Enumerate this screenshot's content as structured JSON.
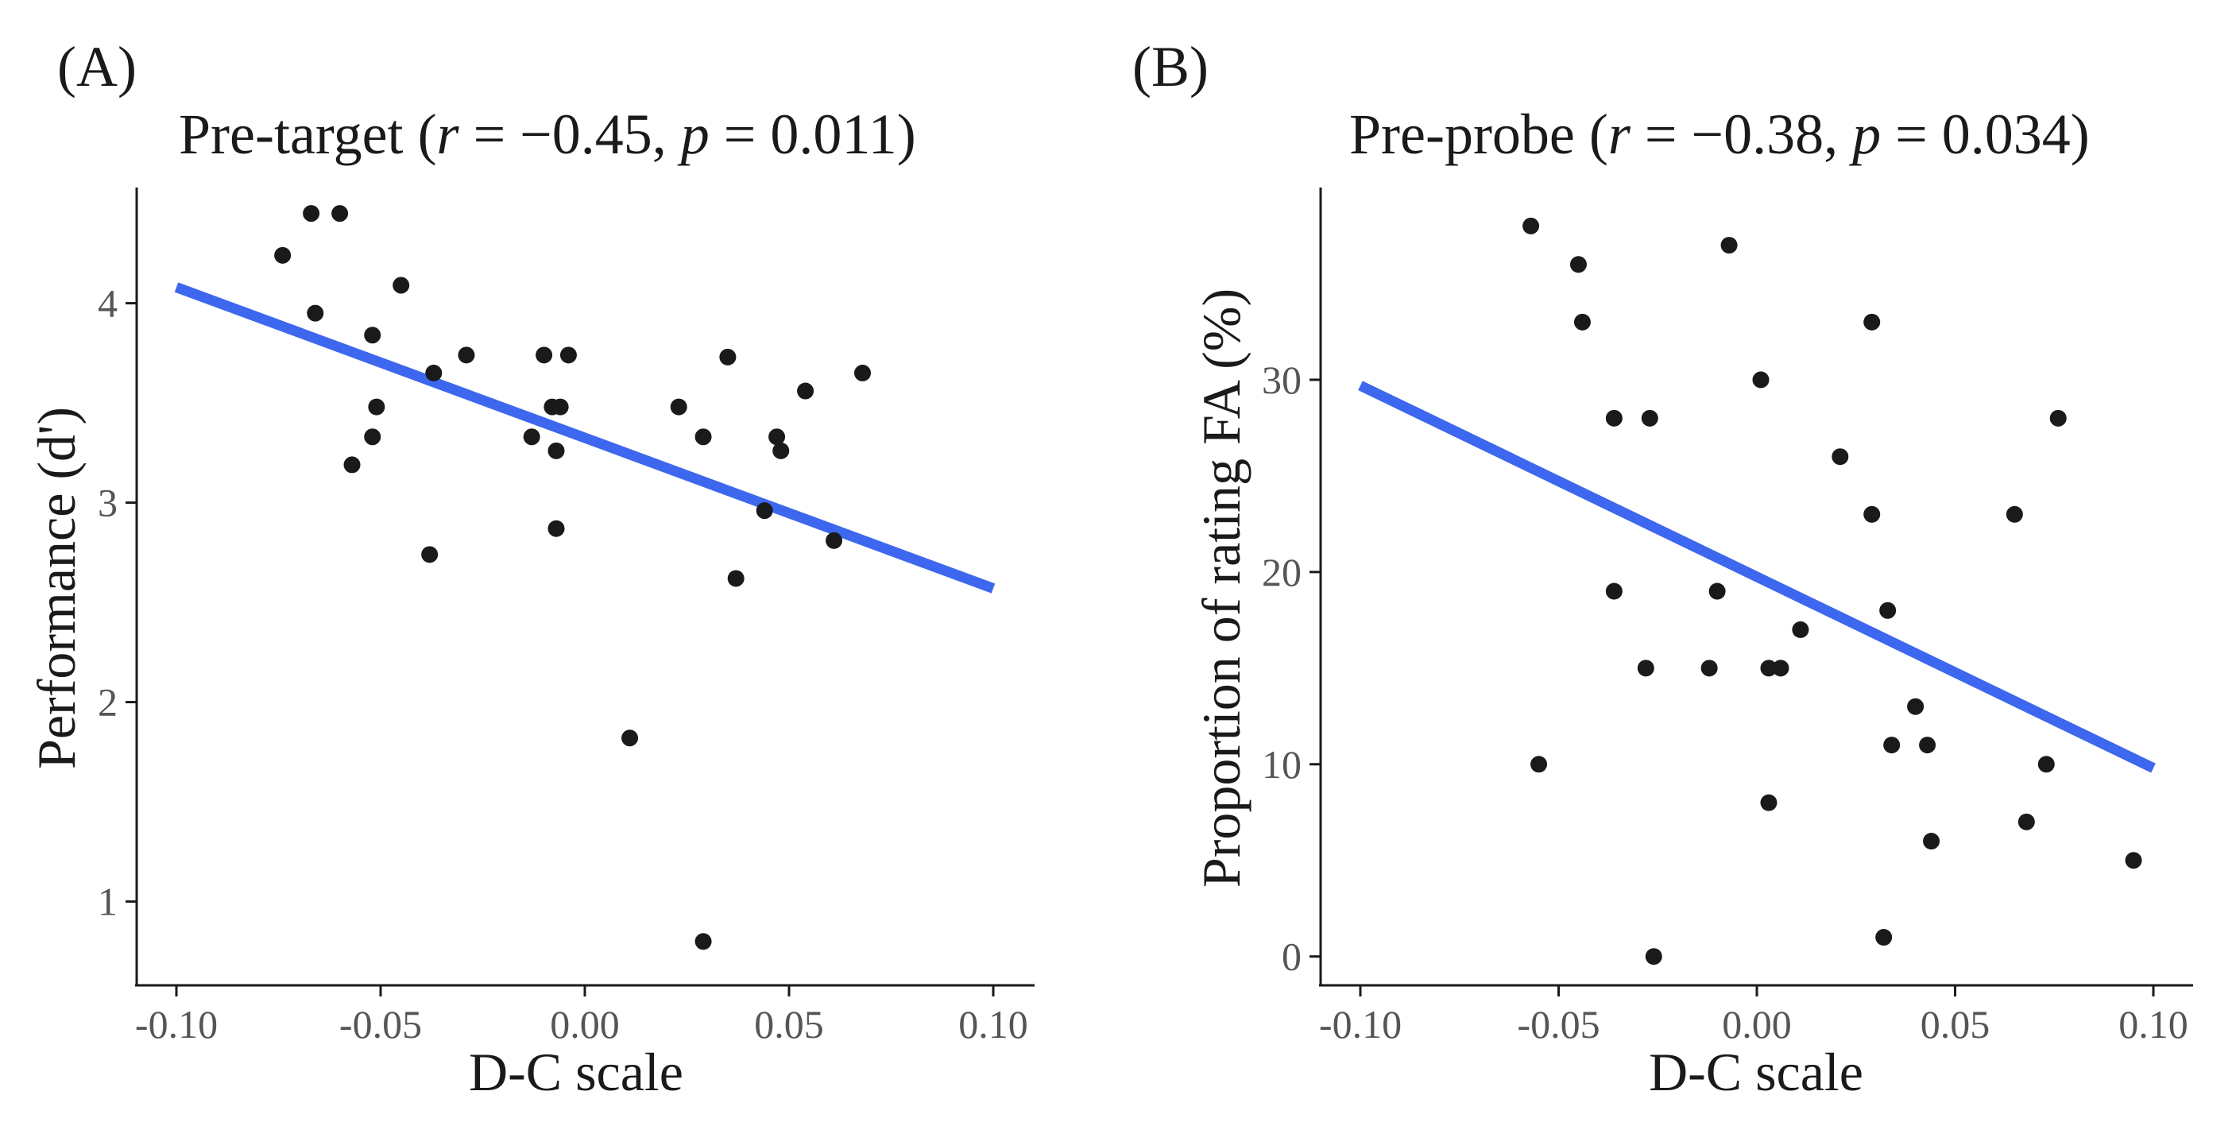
{
  "chart_data": [
    {
      "type": "scatter",
      "panel_label": "(A)",
      "title": {
        "main": "Pre-target",
        "open": " (",
        "r_sym": "r",
        "r_eq": " = −0.45, ",
        "p_sym": "p",
        "p_eq": " = 0.011)"
      },
      "xlabel": "D-C scale",
      "ylabel": "Performance (d')",
      "xlim": [
        -0.1,
        0.1
      ],
      "ylim": [
        0.58,
        4.58
      ],
      "xticks": [
        -0.1,
        -0.05,
        0.0,
        0.05,
        0.1
      ],
      "xtick_labels": [
        "-0.10",
        "-0.05",
        "0.00",
        "0.05",
        "0.10"
      ],
      "yticks": [
        1,
        2,
        3,
        4
      ],
      "ytick_labels": [
        "1",
        "2",
        "3",
        "4"
      ],
      "fit_line": {
        "x": [
          -0.1,
          0.1
        ],
        "y": [
          4.08,
          2.57
        ],
        "color": "#3d67ee"
      },
      "points": [
        {
          "x": -0.074,
          "y": 4.24
        },
        {
          "x": -0.067,
          "y": 4.45
        },
        {
          "x": -0.06,
          "y": 4.45
        },
        {
          "x": -0.066,
          "y": 3.95
        },
        {
          "x": -0.045,
          "y": 4.09
        },
        {
          "x": -0.052,
          "y": 3.84
        },
        {
          "x": -0.037,
          "y": 3.65
        },
        {
          "x": -0.029,
          "y": 3.74
        },
        {
          "x": -0.051,
          "y": 3.48
        },
        {
          "x": -0.052,
          "y": 3.33
        },
        {
          "x": -0.057,
          "y": 3.19
        },
        {
          "x": -0.038,
          "y": 2.74
        },
        {
          "x": -0.01,
          "y": 3.74
        },
        {
          "x": -0.004,
          "y": 3.74
        },
        {
          "x": -0.008,
          "y": 3.48
        },
        {
          "x": -0.006,
          "y": 3.48
        },
        {
          "x": -0.013,
          "y": 3.33
        },
        {
          "x": -0.007,
          "y": 3.26
        },
        {
          "x": -0.007,
          "y": 2.87
        },
        {
          "x": 0.011,
          "y": 1.82
        },
        {
          "x": 0.023,
          "y": 3.48
        },
        {
          "x": 0.035,
          "y": 3.73
        },
        {
          "x": 0.029,
          "y": 3.33
        },
        {
          "x": 0.047,
          "y": 3.33
        },
        {
          "x": 0.048,
          "y": 3.26
        },
        {
          "x": 0.054,
          "y": 3.56
        },
        {
          "x": 0.068,
          "y": 3.65
        },
        {
          "x": 0.044,
          "y": 2.96
        },
        {
          "x": 0.061,
          "y": 2.81
        },
        {
          "x": 0.037,
          "y": 2.62
        },
        {
          "x": 0.029,
          "y": 0.8
        }
      ]
    },
    {
      "type": "scatter",
      "panel_label": "(B)",
      "title": {
        "main": "Pre-probe",
        "open": " (",
        "r_sym": "r",
        "r_eq": " = −0.38, ",
        "p_sym": "p",
        "p_eq": " = 0.034)"
      },
      "xlabel": "D-C scale",
      "ylabel": "Proportion of rating FA (%)",
      "xlim": [
        -0.1,
        0.1
      ],
      "ylim": [
        -1.5,
        40
      ],
      "xticks": [
        -0.1,
        -0.05,
        0.0,
        0.05,
        0.1
      ],
      "xtick_labels": [
        "-0.10",
        "-0.05",
        "0.00",
        "0.05",
        "0.10"
      ],
      "yticks": [
        0,
        10,
        20,
        30
      ],
      "ytick_labels": [
        "0",
        "10",
        "20",
        "30"
      ],
      "fit_line": {
        "x": [
          -0.1,
          0.1
        ],
        "y": [
          29.7,
          9.8
        ],
        "color": "#3d67ee"
      },
      "points": [
        {
          "x": -0.057,
          "y": 38
        },
        {
          "x": -0.045,
          "y": 36
        },
        {
          "x": -0.044,
          "y": 33
        },
        {
          "x": -0.007,
          "y": 37
        },
        {
          "x": 0.029,
          "y": 33
        },
        {
          "x": -0.036,
          "y": 28
        },
        {
          "x": -0.027,
          "y": 28
        },
        {
          "x": 0.001,
          "y": 30
        },
        {
          "x": 0.076,
          "y": 28
        },
        {
          "x": 0.021,
          "y": 26
        },
        {
          "x": 0.029,
          "y": 23
        },
        {
          "x": 0.065,
          "y": 23
        },
        {
          "x": -0.036,
          "y": 19
        },
        {
          "x": -0.01,
          "y": 19
        },
        {
          "x": 0.033,
          "y": 18
        },
        {
          "x": 0.011,
          "y": 17
        },
        {
          "x": -0.028,
          "y": 15
        },
        {
          "x": -0.012,
          "y": 15
        },
        {
          "x": 0.003,
          "y": 15
        },
        {
          "x": 0.006,
          "y": 15
        },
        {
          "x": 0.04,
          "y": 13
        },
        {
          "x": 0.034,
          "y": 11
        },
        {
          "x": 0.043,
          "y": 11
        },
        {
          "x": -0.055,
          "y": 10
        },
        {
          "x": 0.073,
          "y": 10
        },
        {
          "x": 0.003,
          "y": 8
        },
        {
          "x": 0.068,
          "y": 7
        },
        {
          "x": 0.044,
          "y": 6
        },
        {
          "x": 0.095,
          "y": 5
        },
        {
          "x": 0.032,
          "y": 1
        },
        {
          "x": -0.026,
          "y": 0
        }
      ]
    }
  ]
}
